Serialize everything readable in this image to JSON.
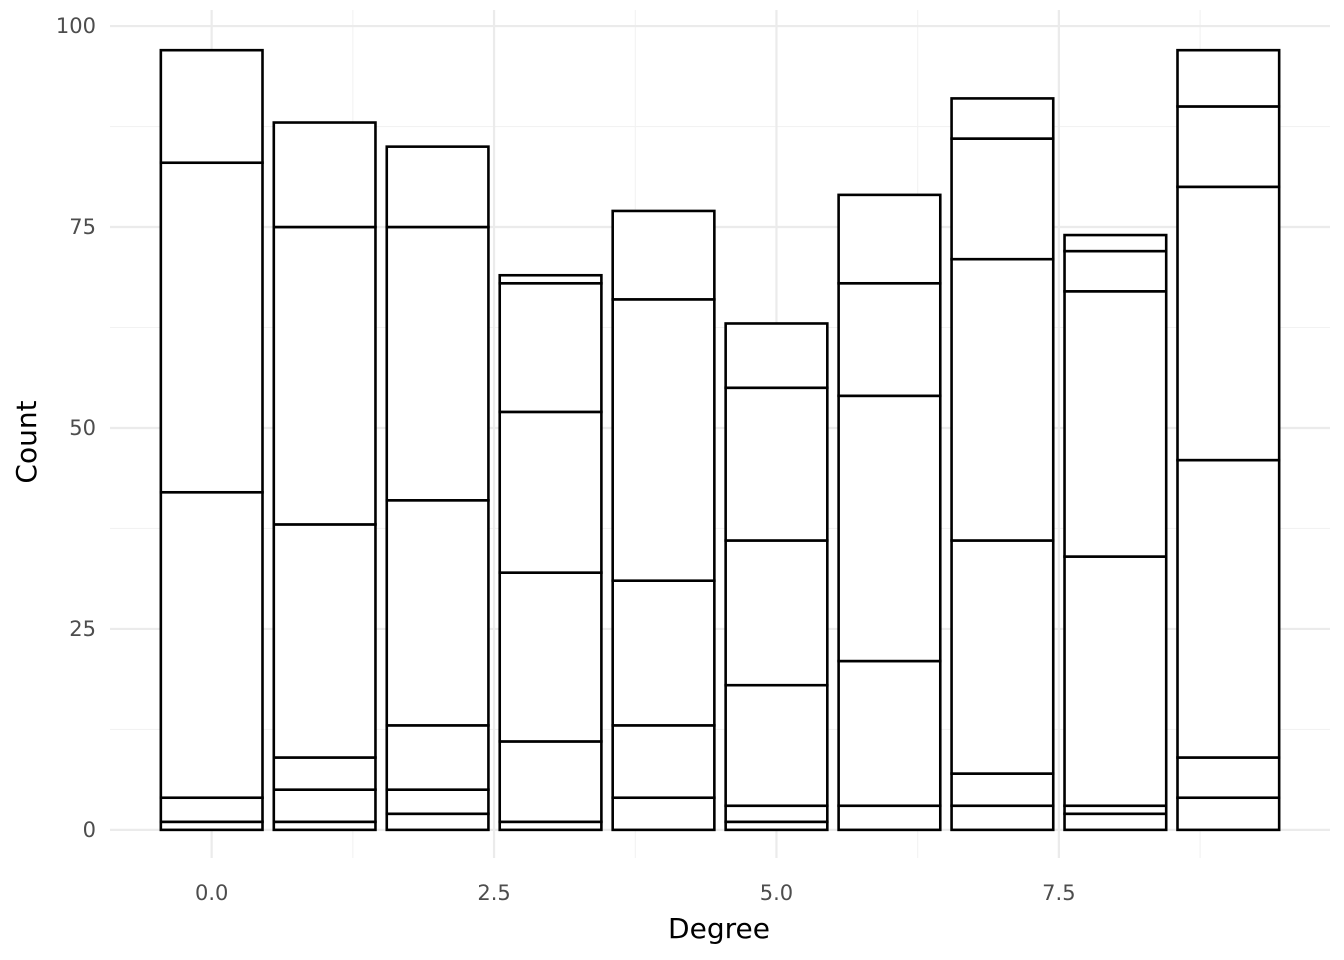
{
  "chart_data": {
    "type": "bar",
    "stacked": true,
    "title": "",
    "xlabel": "Degree",
    "ylabel": "Count",
    "xlim": [
      -0.9,
      9.9
    ],
    "ylim": [
      -3.5,
      102
    ],
    "x_ticks": [
      0,
      2.5,
      5,
      7.5
    ],
    "x_tick_labels": [
      "0.0",
      "2.5",
      "5.0",
      "7.5"
    ],
    "y_ticks": [
      0,
      25,
      50,
      75,
      100
    ],
    "y_tick_labels": [
      "0",
      "25",
      "50",
      "75",
      "100"
    ],
    "grid": true,
    "bar_width": 0.9,
    "fill_color": "#ffffff",
    "outline_color": "#000000",
    "bars": [
      {
        "x": 0,
        "boundaries": [
          0,
          1,
          4,
          42,
          83,
          97
        ]
      },
      {
        "x": 1,
        "boundaries": [
          0,
          1,
          5,
          9,
          38,
          75,
          88
        ]
      },
      {
        "x": 2,
        "boundaries": [
          0,
          2,
          5,
          13,
          41,
          75,
          85
        ]
      },
      {
        "x": 3,
        "boundaries": [
          0,
          1,
          11,
          32,
          52,
          68,
          69
        ]
      },
      {
        "x": 4,
        "boundaries": [
          0,
          4,
          13,
          31,
          66,
          77
        ]
      },
      {
        "x": 5,
        "boundaries": [
          0,
          1,
          3,
          18,
          36,
          55,
          63
        ]
      },
      {
        "x": 6,
        "boundaries": [
          0,
          3,
          21,
          54,
          68,
          79
        ]
      },
      {
        "x": 7,
        "boundaries": [
          0,
          3,
          7,
          36,
          71,
          86,
          91
        ]
      },
      {
        "x": 8,
        "boundaries": [
          0,
          2,
          3,
          34,
          67,
          72,
          74
        ]
      },
      {
        "x": 9,
        "boundaries": [
          0,
          4,
          9,
          46,
          80,
          90,
          97
        ]
      }
    ]
  }
}
